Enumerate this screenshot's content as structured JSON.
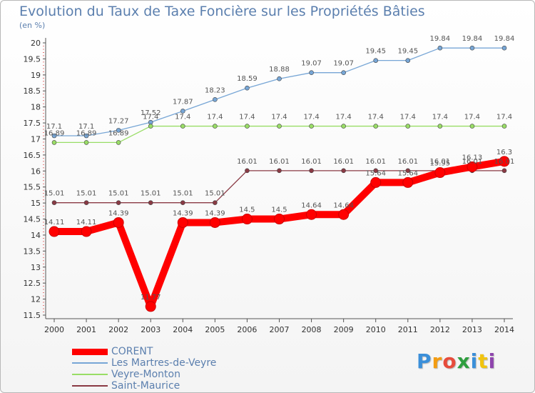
{
  "chart_data": {
    "type": "line",
    "title": "Evolution du Taux de Taxe Foncière sur les Propriétés Bâties",
    "subtitle": "(en %)",
    "x": [
      "2000",
      "2001",
      "2002",
      "2003",
      "2004",
      "2005",
      "2006",
      "2007",
      "2008",
      "2009",
      "2010",
      "2011",
      "2012",
      "2013",
      "2014"
    ],
    "y_ticks": [
      "11.5",
      "12",
      "12.5",
      "13",
      "13.5",
      "14",
      "14.5",
      "15",
      "15.5",
      "16",
      "16.5",
      "17",
      "17.5",
      "18",
      "18.5",
      "19",
      "19.5",
      "20"
    ],
    "ylim": [
      11.5,
      20
    ],
    "grid": false,
    "legend_position": "bottom-left",
    "series": [
      {
        "name": "CORENT",
        "color": "#ff0000",
        "style": "thick",
        "values": [
          14.11,
          14.11,
          14.39,
          11.77,
          14.39,
          14.39,
          14.5,
          14.5,
          14.64,
          14.64,
          15.64,
          15.64,
          15.95,
          16.13,
          16.3
        ],
        "labels": [
          "14.11",
          "14.11",
          "14.39",
          "11.77",
          "14.39",
          "14.39",
          "14.5",
          "14.5",
          "14.64",
          "14.64",
          "15.64",
          "15.64",
          "15.95",
          "16.13",
          "16.3"
        ]
      },
      {
        "name": "Les Martres-de-Veyre",
        "color": "#77a6d6",
        "style": "thin",
        "values": [
          17.1,
          17.1,
          17.27,
          17.52,
          17.87,
          18.23,
          18.59,
          18.88,
          19.07,
          19.07,
          19.45,
          19.45,
          19.84,
          19.84,
          19.84
        ],
        "labels": [
          "17.1",
          "17.1",
          "17.27",
          "17.52",
          "17.87",
          "18.23",
          "18.59",
          "18.88",
          "19.07",
          "19.07",
          "19.45",
          "19.45",
          "19.84",
          "19.84",
          "19.84"
        ]
      },
      {
        "name": "Veyre-Monton",
        "color": "#99dd66",
        "style": "thin",
        "values": [
          16.89,
          16.89,
          16.89,
          17.4,
          17.4,
          17.4,
          17.4,
          17.4,
          17.4,
          17.4,
          17.4,
          17.4,
          17.4,
          17.4,
          17.4
        ],
        "labels": [
          "16.89",
          "16.89",
          "16.89",
          "17.4",
          "17.4",
          "17.4",
          "17.4",
          "17.4",
          "17.4",
          "17.4",
          "17.4",
          "17.4",
          "17.4",
          "17.4",
          "17.4"
        ]
      },
      {
        "name": "Saint-Maurice",
        "color": "#8a3a44",
        "style": "thin",
        "values": [
          15.01,
          15.01,
          15.01,
          15.01,
          15.01,
          15.01,
          16.01,
          16.01,
          16.01,
          16.01,
          16.01,
          16.01,
          16.01,
          16.01,
          16.01
        ],
        "labels": [
          "15.01",
          "15.01",
          "15.01",
          "15.01",
          "15.01",
          "15.01",
          "16.01",
          "16.01",
          "16.01",
          "16.01",
          "16.01",
          "16.01",
          "16.01",
          "16.01",
          "16.01"
        ]
      }
    ]
  },
  "logo": {
    "letters": [
      "P",
      "r",
      "o",
      "x",
      "i",
      "t",
      "i"
    ],
    "colors": [
      "#3b8fd9",
      "#f39c12",
      "#e74c3c",
      "#2e9e3f",
      "#3b8fd9",
      "#f1c40f",
      "#8e44ad"
    ]
  }
}
